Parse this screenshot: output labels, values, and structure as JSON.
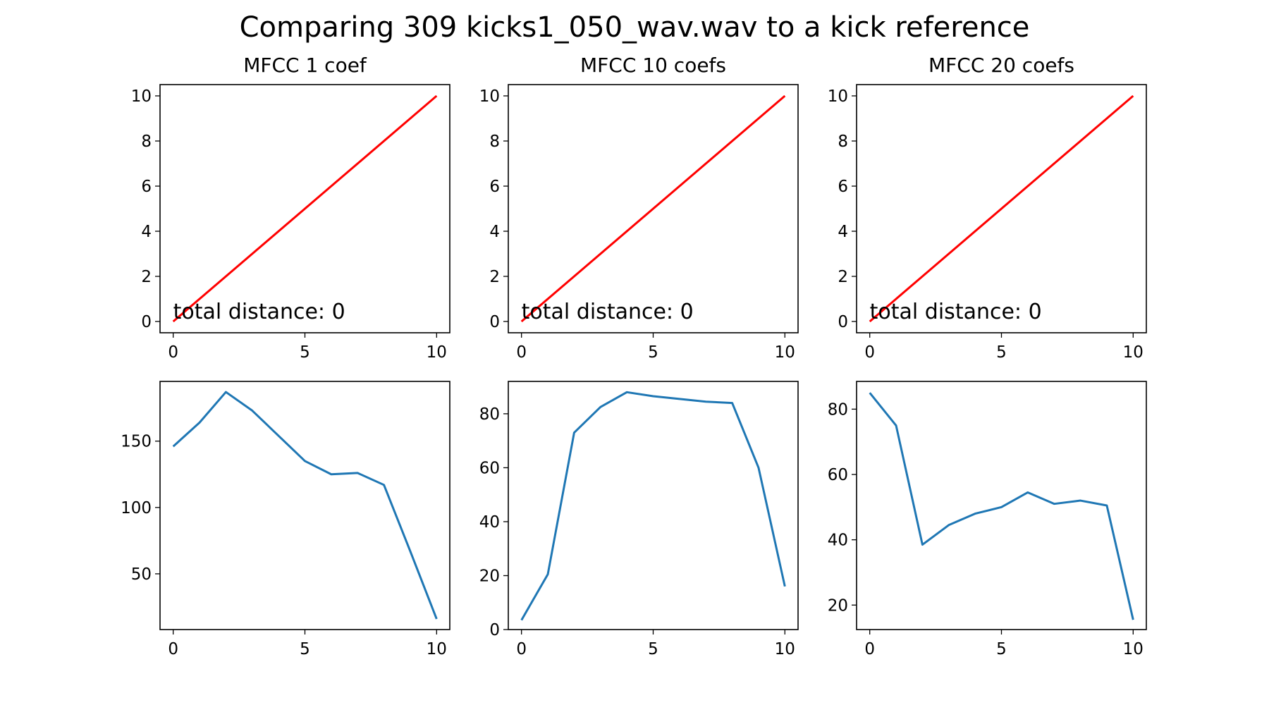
{
  "figure": {
    "title": "Comparing 309 kicks1_050_wav.wav to a kick reference"
  },
  "chart_data": [
    {
      "type": "line",
      "row": "top",
      "title": "MFCC 1 coef",
      "xlabel": "",
      "ylabel": "",
      "xlim": [
        -0.5,
        10.5
      ],
      "ylim": [
        -0.5,
        10.5
      ],
      "xticks": [
        0,
        5,
        10
      ],
      "yticks": [
        0,
        2,
        4,
        6,
        8,
        10
      ],
      "series": [
        {
          "x": [
            0,
            10
          ],
          "y": [
            0,
            10
          ],
          "color": "#ff0000"
        }
      ],
      "annotation": "total distance: 0",
      "grid": false
    },
    {
      "type": "line",
      "row": "top",
      "title": "MFCC 10 coefs",
      "xlabel": "",
      "ylabel": "",
      "xlim": [
        -0.5,
        10.5
      ],
      "ylim": [
        -0.5,
        10.5
      ],
      "xticks": [
        0,
        5,
        10
      ],
      "yticks": [
        0,
        2,
        4,
        6,
        8,
        10
      ],
      "series": [
        {
          "x": [
            0,
            10
          ],
          "y": [
            0,
            10
          ],
          "color": "#ff0000"
        }
      ],
      "annotation": "total distance: 0",
      "grid": false
    },
    {
      "type": "line",
      "row": "top",
      "title": "MFCC 20 coefs",
      "xlabel": "",
      "ylabel": "",
      "xlim": [
        -0.5,
        10.5
      ],
      "ylim": [
        -0.5,
        10.5
      ],
      "xticks": [
        0,
        5,
        10
      ],
      "yticks": [
        0,
        2,
        4,
        6,
        8,
        10
      ],
      "series": [
        {
          "x": [
            0,
            10
          ],
          "y": [
            0,
            10
          ],
          "color": "#ff0000"
        }
      ],
      "annotation": "total distance: 0",
      "grid": false
    },
    {
      "type": "line",
      "row": "bottom",
      "title": "",
      "xlabel": "",
      "ylabel": "",
      "xlim": [
        -0.5,
        10.5
      ],
      "ylim": [
        8,
        195
      ],
      "xticks": [
        0,
        5,
        10
      ],
      "yticks": [
        50,
        100,
        150
      ],
      "series": [
        {
          "x": [
            0,
            1,
            2,
            3,
            4,
            5,
            6,
            7,
            8,
            9,
            10
          ],
          "y": [
            146,
            164,
            187,
            173,
            154,
            135,
            125,
            126,
            117,
            67,
            16
          ],
          "color": "#1f77b4"
        }
      ],
      "grid": false
    },
    {
      "type": "line",
      "row": "bottom",
      "title": "",
      "xlabel": "",
      "ylabel": "",
      "xlim": [
        -0.5,
        10.5
      ],
      "ylim": [
        0,
        92
      ],
      "xticks": [
        0,
        5,
        10
      ],
      "yticks": [
        0,
        20,
        40,
        60,
        80
      ],
      "series": [
        {
          "x": [
            0,
            1,
            2,
            3,
            4,
            5,
            6,
            7,
            8,
            9,
            10
          ],
          "y": [
            3.5,
            20.5,
            73,
            82.5,
            88,
            86.5,
            85.5,
            84.5,
            84,
            60,
            16
          ],
          "color": "#1f77b4"
        }
      ],
      "grid": false
    },
    {
      "type": "line",
      "row": "bottom",
      "title": "",
      "xlabel": "",
      "ylabel": "",
      "xlim": [
        -0.5,
        10.5
      ],
      "ylim": [
        12.5,
        88.5
      ],
      "xticks": [
        0,
        5,
        10
      ],
      "yticks": [
        20,
        40,
        60,
        80
      ],
      "series": [
        {
          "x": [
            0,
            1,
            2,
            3,
            4,
            5,
            6,
            7,
            8,
            9,
            10
          ],
          "y": [
            85,
            75,
            38.5,
            44.5,
            48,
            50,
            54.5,
            51,
            52,
            50.5,
            15.5
          ],
          "color": "#1f77b4"
        }
      ],
      "grid": false
    }
  ]
}
